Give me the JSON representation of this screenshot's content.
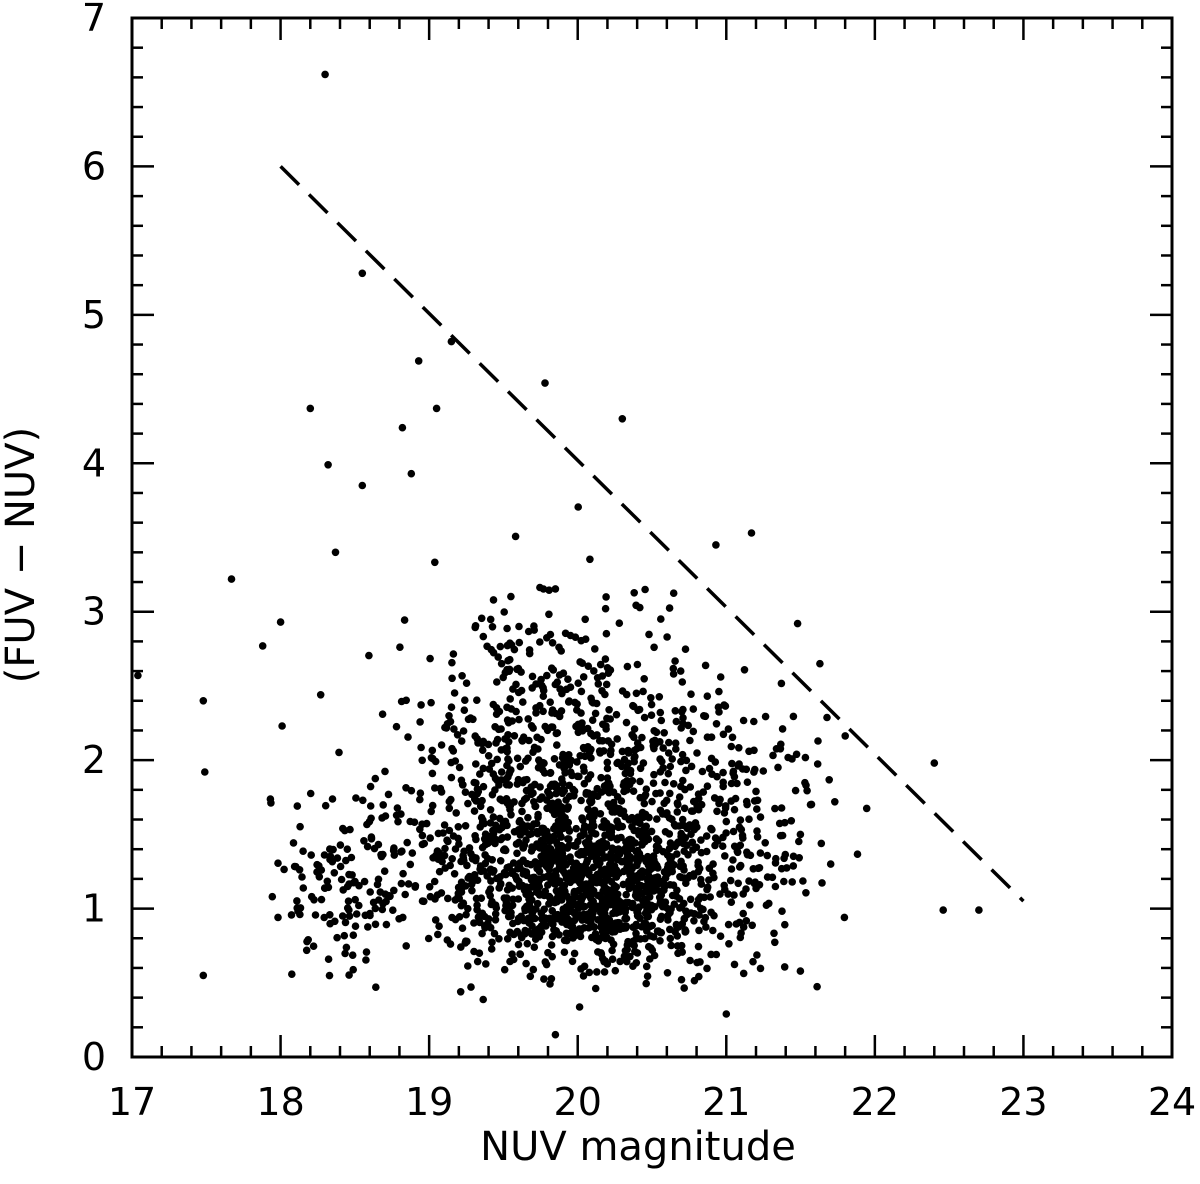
{
  "chart_data": {
    "type": "scatter",
    "title": "",
    "xlabel": "NUV magnitude",
    "ylabel": "(FUV − NUV)",
    "xlim": [
      17,
      24
    ],
    "ylim": [
      0,
      7
    ],
    "xticks": [
      "17",
      "18",
      "19",
      "20",
      "21",
      "22",
      "23",
      "24"
    ],
    "yticks": [
      "0",
      "1",
      "2",
      "3",
      "4",
      "5",
      "6",
      "7"
    ],
    "grid": false,
    "legend": "none",
    "marker_color": "#000000",
    "line": {
      "style": "dashed",
      "x": [
        18.0,
        23.0
      ],
      "y": [
        6.0,
        1.05
      ]
    },
    "outliers": [
      {
        "x": 18.3,
        "y": 6.62
      },
      {
        "x": 18.55,
        "y": 5.28
      },
      {
        "x": 19.15,
        "y": 4.82
      },
      {
        "x": 19.05,
        "y": 4.37
      },
      {
        "x": 18.2,
        "y": 4.37
      },
      {
        "x": 17.67,
        "y": 3.22
      },
      {
        "x": 18.0,
        "y": 2.93
      },
      {
        "x": 17.88,
        "y": 2.77
      },
      {
        "x": 17.48,
        "y": 2.4
      },
      {
        "x": 17.04,
        "y": 2.57
      },
      {
        "x": 17.49,
        "y": 1.92
      },
      {
        "x": 17.48,
        "y": 0.55
      },
      {
        "x": 19.85,
        "y": 0.15
      },
      {
        "x": 21.0,
        "y": 0.29
      },
      {
        "x": 22.4,
        "y": 1.98
      },
      {
        "x": 22.7,
        "y": 0.99
      },
      {
        "x": 22.46,
        "y": 0.99
      },
      {
        "x": 21.63,
        "y": 2.65
      },
      {
        "x": 21.48,
        "y": 2.92
      },
      {
        "x": 21.17,
        "y": 3.53
      },
      {
        "x": 20.93,
        "y": 3.45
      },
      {
        "x": 20.3,
        "y": 4.3
      },
      {
        "x": 19.78,
        "y": 4.54
      },
      {
        "x": 18.32,
        "y": 3.99
      },
      {
        "x": 18.37,
        "y": 3.4
      },
      {
        "x": 18.01,
        "y": 2.23
      },
      {
        "x": 18.27,
        "y": 2.44
      },
      {
        "x": 18.88,
        "y": 3.93
      },
      {
        "x": 18.55,
        "y": 3.85
      },
      {
        "x": 18.82,
        "y": 4.24
      },
      {
        "x": 18.93,
        "y": 4.69
      }
    ],
    "clusters": [
      {
        "cx": 20.1,
        "cy": 1.15,
        "sx": 0.55,
        "sy": 0.38,
        "n": 900
      },
      {
        "cx": 20.0,
        "cy": 2.0,
        "sx": 0.7,
        "sy": 0.75,
        "n": 650
      },
      {
        "cx": 19.3,
        "cy": 1.4,
        "sx": 0.55,
        "sy": 0.6,
        "n": 260
      },
      {
        "cx": 21.0,
        "cy": 1.5,
        "sx": 0.5,
        "sy": 0.6,
        "n": 300
      },
      {
        "cx": 18.4,
        "cy": 1.2,
        "sx": 0.35,
        "sy": 0.45,
        "n": 120
      }
    ],
    "bounds": {
      "xmin": 17.0,
      "xmax": 22.8,
      "ymin": 0.3,
      "edge_slope": -0.99,
      "edge_x0": 18.0,
      "edge_y0": 6.0
    }
  }
}
